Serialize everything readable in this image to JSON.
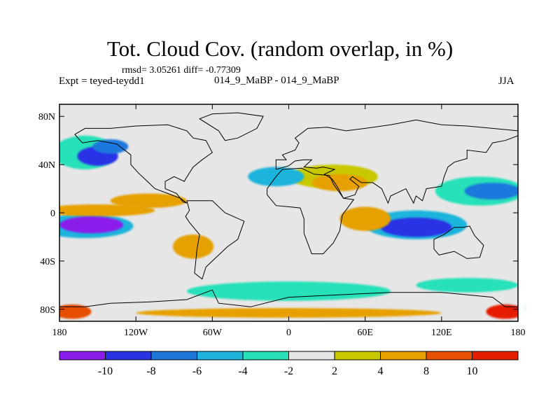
{
  "title": "Tot. Cloud Cov. (random overlap, in %)",
  "stats_line": "rmsd= 3.05261 diff= -0.77309",
  "experiment_line": "Expt = teyed-teydd1",
  "runs_line": "014_9_MaBP - 014_9_MaBP",
  "season": "JJA",
  "axes": {
    "x_ticks": [
      {
        "lon": -180,
        "label": "180"
      },
      {
        "lon": -120,
        "label": "120W"
      },
      {
        "lon": -60,
        "label": "60W"
      },
      {
        "lon": 0,
        "label": "0"
      },
      {
        "lon": 60,
        "label": "60E"
      },
      {
        "lon": 120,
        "label": "120E"
      },
      {
        "lon": 180,
        "label": "180"
      }
    ],
    "y_ticks": [
      {
        "lat": 80,
        "label": "80N"
      },
      {
        "lat": 40,
        "label": "40N"
      },
      {
        "lat": 0,
        "label": "0"
      },
      {
        "lat": -40,
        "label": "40S"
      },
      {
        "lat": -80,
        "label": "80S"
      }
    ],
    "lon_range": [
      -180,
      180
    ],
    "lat_range": [
      -90,
      90
    ]
  },
  "colorbar": {
    "colors": [
      "#8c1eeb",
      "#2a32e6",
      "#1e78dc",
      "#1eb4dc",
      "#28e1b9",
      "#e6e6e6",
      "#c8c800",
      "#e6a000",
      "#e65000",
      "#e61e00"
    ],
    "labels": [
      "-10",
      "-8",
      "-6",
      "-4",
      "-2",
      "2",
      "4",
      "8",
      "10"
    ]
  },
  "anomaly_blobs": [
    {
      "lon": -150,
      "lat": 47,
      "rx": 16,
      "ry": 8,
      "level": 1
    },
    {
      "lon": -140,
      "lat": 55,
      "rx": 14,
      "ry": 6,
      "level": 2
    },
    {
      "lon": -160,
      "lat": 50,
      "rx": 25,
      "ry": 14,
      "level": 4
    },
    {
      "lon": -155,
      "lat": -10,
      "rx": 25,
      "ry": 7,
      "level": 0
    },
    {
      "lon": -160,
      "lat": -11,
      "rx": 38,
      "ry": 10,
      "level": 3
    },
    {
      "lon": -150,
      "lat": 2,
      "rx": 45,
      "ry": 5,
      "level": 7
    },
    {
      "lon": -110,
      "lat": 10,
      "rx": 30,
      "ry": 6,
      "level": 7
    },
    {
      "lon": -10,
      "lat": 30,
      "rx": 22,
      "ry": 8,
      "level": 3
    },
    {
      "lon": 40,
      "lat": 25,
      "rx": 22,
      "ry": 7,
      "level": 7
    },
    {
      "lon": 35,
      "lat": 30,
      "rx": 35,
      "ry": 10,
      "level": 6
    },
    {
      "lon": 100,
      "lat": -12,
      "rx": 28,
      "ry": 8,
      "level": 1
    },
    {
      "lon": 100,
      "lat": -10,
      "rx": 40,
      "ry": 12,
      "level": 3
    },
    {
      "lon": 60,
      "lat": -5,
      "rx": 20,
      "ry": 10,
      "level": 7
    },
    {
      "lon": 160,
      "lat": 18,
      "rx": 22,
      "ry": 7,
      "level": 2
    },
    {
      "lon": 150,
      "lat": 18,
      "rx": 35,
      "ry": 12,
      "level": 4
    },
    {
      "lon": -75,
      "lat": -28,
      "rx": 16,
      "ry": 10,
      "level": 7
    },
    {
      "lon": 0,
      "lat": -65,
      "rx": 80,
      "ry": 8,
      "level": 4
    },
    {
      "lon": 140,
      "lat": -60,
      "rx": 40,
      "ry": 6,
      "level": 4
    },
    {
      "lon": -170,
      "lat": -82,
      "rx": 15,
      "ry": 6,
      "level": 8
    },
    {
      "lon": 170,
      "lat": -82,
      "rx": 15,
      "ry": 6,
      "level": 9
    },
    {
      "lon": 0,
      "lat": -83,
      "rx": 120,
      "ry": 4,
      "level": 7
    }
  ],
  "coastlines": [
    [
      [
        -168,
        65
      ],
      [
        -160,
        70
      ],
      [
        -140,
        70
      ],
      [
        -120,
        72
      ],
      [
        -95,
        73
      ],
      [
        -80,
        68
      ],
      [
        -75,
        62
      ],
      [
        -65,
        60
      ],
      [
        -60,
        50
      ],
      [
        -68,
        44
      ],
      [
        -75,
        38
      ],
      [
        -81,
        28
      ],
      [
        -82,
        26
      ],
      [
        -90,
        30
      ],
      [
        -97,
        26
      ],
      [
        -97,
        20
      ],
      [
        -88,
        16
      ],
      [
        -83,
        9
      ],
      [
        -80,
        8
      ],
      [
        -85,
        12
      ],
      [
        -95,
        16
      ],
      [
        -105,
        20
      ],
      [
        -110,
        25
      ],
      [
        -118,
        33
      ],
      [
        -124,
        40
      ],
      [
        -124,
        48
      ],
      [
        -135,
        57
      ],
      [
        -150,
        60
      ],
      [
        -162,
        58
      ],
      [
        -168,
        65
      ]
    ],
    [
      [
        -80,
        10
      ],
      [
        -60,
        10
      ],
      [
        -50,
        0
      ],
      [
        -35,
        -7
      ],
      [
        -40,
        -22
      ],
      [
        -48,
        -28
      ],
      [
        -58,
        -38
      ],
      [
        -65,
        -45
      ],
      [
        -68,
        -55
      ],
      [
        -74,
        -50
      ],
      [
        -72,
        -30
      ],
      [
        -70,
        -18
      ],
      [
        -78,
        -8
      ],
      [
        -81,
        -3
      ],
      [
        -78,
        2
      ],
      [
        -80,
        10
      ]
    ],
    [
      [
        -10,
        36
      ],
      [
        -10,
        44
      ],
      [
        -2,
        44
      ],
      [
        -5,
        48
      ],
      [
        5,
        52
      ],
      [
        8,
        58
      ],
      [
        5,
        62
      ],
      [
        15,
        70
      ],
      [
        30,
        71
      ],
      [
        45,
        68
      ],
      [
        60,
        70
      ],
      [
        80,
        73
      ],
      [
        100,
        77
      ],
      [
        120,
        73
      ],
      [
        140,
        72
      ],
      [
        160,
        70
      ],
      [
        180,
        68
      ],
      [
        180,
        64
      ],
      [
        170,
        60
      ],
      [
        160,
        58
      ],
      [
        155,
        50
      ],
      [
        140,
        52
      ],
      [
        140,
        45
      ],
      [
        130,
        42
      ],
      [
        125,
        38
      ],
      [
        122,
        30
      ],
      [
        120,
        22
      ],
      [
        108,
        20
      ],
      [
        105,
        10
      ],
      [
        100,
        14
      ],
      [
        98,
        8
      ],
      [
        92,
        20
      ],
      [
        80,
        14
      ],
      [
        78,
        8
      ],
      [
        73,
        20
      ],
      [
        66,
        25
      ],
      [
        57,
        25
      ],
      [
        50,
        30
      ],
      [
        48,
        28
      ],
      [
        55,
        22
      ],
      [
        52,
        15
      ],
      [
        43,
        12
      ],
      [
        38,
        22
      ],
      [
        34,
        28
      ],
      [
        28,
        32
      ],
      [
        36,
        36
      ],
      [
        27,
        38
      ],
      [
        22,
        37
      ],
      [
        12,
        38
      ],
      [
        18,
        44
      ],
      [
        12,
        44
      ],
      [
        5,
        43
      ],
      [
        0,
        39
      ],
      [
        -10,
        36
      ]
    ],
    [
      [
        -17,
        20
      ],
      [
        -10,
        30
      ],
      [
        -5,
        36
      ],
      [
        10,
        37
      ],
      [
        20,
        32
      ],
      [
        32,
        31
      ],
      [
        35,
        24
      ],
      [
        43,
        12
      ],
      [
        51,
        11
      ],
      [
        42,
        -2
      ],
      [
        40,
        -15
      ],
      [
        35,
        -25
      ],
      [
        27,
        -34
      ],
      [
        18,
        -34
      ],
      [
        12,
        -17
      ],
      [
        12,
        -5
      ],
      [
        9,
        4
      ],
      [
        0,
        5
      ],
      [
        -10,
        6
      ],
      [
        -17,
        15
      ],
      [
        -17,
        20
      ]
    ],
    [
      [
        114,
        -22
      ],
      [
        122,
        -18
      ],
      [
        130,
        -12
      ],
      [
        137,
        -12
      ],
      [
        142,
        -11
      ],
      [
        146,
        -19
      ],
      [
        153,
        -27
      ],
      [
        150,
        -37
      ],
      [
        140,
        -38
      ],
      [
        130,
        -32
      ],
      [
        118,
        -35
      ],
      [
        114,
        -30
      ],
      [
        114,
        -22
      ]
    ],
    [
      [
        -180,
        -78
      ],
      [
        -160,
        -78
      ],
      [
        -140,
        -75
      ],
      [
        -110,
        -74
      ],
      [
        -80,
        -72
      ],
      [
        -60,
        -64
      ],
      [
        -55,
        -75
      ],
      [
        -30,
        -78
      ],
      [
        0,
        -70
      ],
      [
        40,
        -68
      ],
      [
        80,
        -66
      ],
      [
        120,
        -66
      ],
      [
        160,
        -70
      ],
      [
        170,
        -78
      ],
      [
        180,
        -78
      ]
    ],
    [
      [
        -50,
        60
      ],
      [
        -40,
        62
      ],
      [
        -25,
        70
      ],
      [
        -20,
        80
      ],
      [
        -40,
        83
      ],
      [
        -60,
        82
      ],
      [
        -70,
        78
      ],
      [
        -55,
        68
      ],
      [
        -50,
        60
      ]
    ]
  ]
}
